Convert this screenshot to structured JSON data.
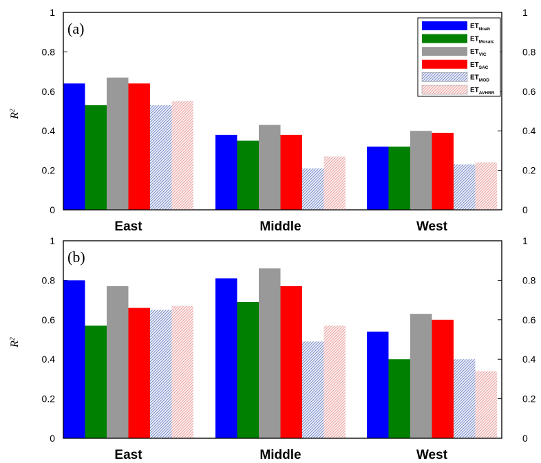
{
  "colors": {
    "Noah": "#0000ff",
    "Mosaic": "#008000",
    "VIC": "#999999",
    "SAC": "#ff0000",
    "MOD": "#b7c3e8",
    "AVHRR": "#f7c6c6"
  },
  "chart_data": [
    {
      "type": "bar",
      "panel_label": "(a)",
      "ylabel": "R",
      "ylabel_sup": "2",
      "ylim": [
        0,
        1
      ],
      "yticks": [
        "0",
        "0.2",
        "0.4",
        "0.6",
        "0.8",
        "1"
      ],
      "categories": [
        "East",
        "Middle",
        "West"
      ],
      "legend_placement": "top-right",
      "series": [
        {
          "name": "ET",
          "sub": "Noah",
          "key": "Noah",
          "values": [
            0.64,
            0.38,
            0.32
          ]
        },
        {
          "name": "ET",
          "sub": "Mosaic",
          "key": "Mosaic",
          "values": [
            0.53,
            0.35,
            0.32
          ]
        },
        {
          "name": "ET",
          "sub": "VIC",
          "key": "VIC",
          "values": [
            0.67,
            0.43,
            0.4
          ]
        },
        {
          "name": "ET",
          "sub": "SAC",
          "key": "SAC",
          "values": [
            0.64,
            0.38,
            0.39
          ]
        },
        {
          "name": "ET",
          "sub": "MOD",
          "key": "MOD",
          "values": [
            0.53,
            0.21,
            0.23
          ]
        },
        {
          "name": "ET",
          "sub": "AVHRR",
          "key": "AVHRR",
          "values": [
            0.55,
            0.27,
            0.24
          ]
        }
      ]
    },
    {
      "type": "bar",
      "panel_label": "(b)",
      "ylabel": "R",
      "ylabel_sup": "2",
      "ylim": [
        0,
        1
      ],
      "yticks": [
        "0",
        "0.2",
        "0.4",
        "0.6",
        "0.8",
        "1"
      ],
      "categories": [
        "East",
        "Middle",
        "West"
      ],
      "series": [
        {
          "key": "Noah",
          "values": [
            0.8,
            0.81,
            0.54
          ]
        },
        {
          "key": "Mosaic",
          "values": [
            0.57,
            0.69,
            0.4
          ]
        },
        {
          "key": "VIC",
          "values": [
            0.77,
            0.86,
            0.63
          ]
        },
        {
          "key": "SAC",
          "values": [
            0.66,
            0.77,
            0.6
          ]
        },
        {
          "key": "MOD",
          "values": [
            0.65,
            0.49,
            0.4
          ]
        },
        {
          "key": "AVHRR",
          "values": [
            0.67,
            0.57,
            0.34
          ]
        }
      ]
    }
  ]
}
